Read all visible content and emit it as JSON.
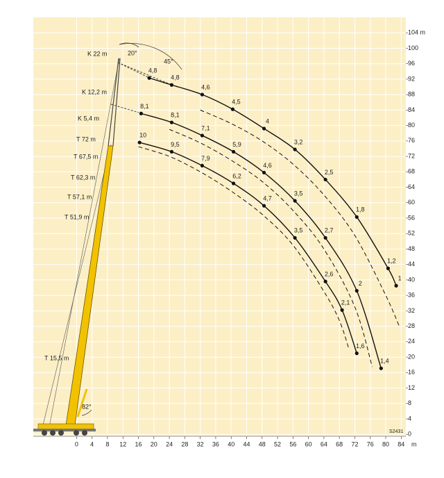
{
  "chart_data": {
    "type": "line",
    "x_label": "m",
    "xlim": [
      -11.2,
      85.2
    ],
    "ylim": [
      -0.5,
      108
    ],
    "xticks": [
      0,
      4,
      8,
      12,
      16,
      20,
      24,
      28,
      32,
      36,
      40,
      44,
      48,
      52,
      56,
      60,
      64,
      68,
      72,
      76,
      80,
      84
    ],
    "yticks": [
      0,
      4,
      8,
      12,
      16,
      20,
      24,
      28,
      32,
      36,
      40,
      44,
      48,
      52,
      56,
      60,
      64,
      68,
      72,
      76,
      80,
      84,
      88,
      92,
      96,
      100,
      {
        "value": 104,
        "label": "104 m"
      }
    ],
    "grid": true,
    "background": "#fcefc6",
    "series": [
      {
        "color": "#111111",
        "dashed": false,
        "x": [
          18.8,
          24.6,
          32.5,
          40.4,
          48.5,
          56.5,
          64.4,
          72.5,
          80.6,
          82.7
        ],
        "values": [
          92.3,
          90.5,
          88,
          84.2,
          79.2,
          73.8,
          66,
          56.3,
          43,
          38.5
        ],
        "point_labels": [
          "4,8",
          "4,8",
          "4,6",
          "4,5",
          "4",
          "3,2",
          "2,5",
          "1,8",
          "1,2",
          "1"
        ]
      },
      {
        "color": "#111111",
        "dashed": false,
        "x": [
          16.7,
          24.6,
          32.5,
          40.6,
          48.5,
          56.5,
          64.4,
          72.5,
          78.8
        ],
        "values": [
          83.1,
          80.8,
          77.4,
          73.2,
          67.8,
          60.5,
          50.9,
          37.2,
          17.1
        ],
        "point_labels": [
          "8,1",
          "8,1",
          "7,1",
          "5,9",
          "4,6",
          "3,5",
          "2,7",
          "2",
          "1,4"
        ]
      },
      {
        "color": "#111111",
        "dashed": false,
        "x": [
          16.3,
          24.6,
          32.5,
          40.6,
          48.5,
          56.5,
          64.4,
          68.7,
          72.5
        ],
        "values": [
          75.6,
          73.2,
          69.6,
          65,
          59.2,
          50.9,
          39.6,
          32.2,
          21
        ],
        "point_labels": [
          "10",
          "9,5",
          "7,9",
          "6,2",
          "4,7",
          "3,5",
          "2,6",
          "2,1",
          "1,6"
        ]
      },
      {
        "color": "#111111",
        "dashed": true,
        "x": [
          32,
          40,
          48,
          56,
          64,
          72,
          80,
          83.5
        ],
        "values": [
          84,
          80.5,
          76,
          70,
          62,
          51.5,
          36,
          28
        ]
      },
      {
        "color": "#111111",
        "dashed": true,
        "x": [
          24,
          32,
          40,
          48,
          56,
          64,
          72,
          76.5
        ],
        "values": [
          79,
          75.5,
          71,
          65.5,
          58,
          48,
          33,
          17.5
        ]
      },
      {
        "color": "#111111",
        "dashed": true,
        "x": [
          16,
          24,
          32,
          40,
          48,
          56,
          64,
          68,
          70.5
        ],
        "values": [
          74.5,
          72,
          68,
          63,
          57,
          49,
          37,
          29.5,
          22
        ]
      }
    ],
    "annotations": [
      "K 22 m",
      "K 12,2 m",
      "K 5,4 m",
      "T 72 m",
      "T 67,5 m",
      "T 62,3 m",
      "T 57,1 m",
      "T 51,9 m",
      "T 15,5 m",
      "20°",
      "45°",
      "82°",
      "S2431"
    ]
  }
}
